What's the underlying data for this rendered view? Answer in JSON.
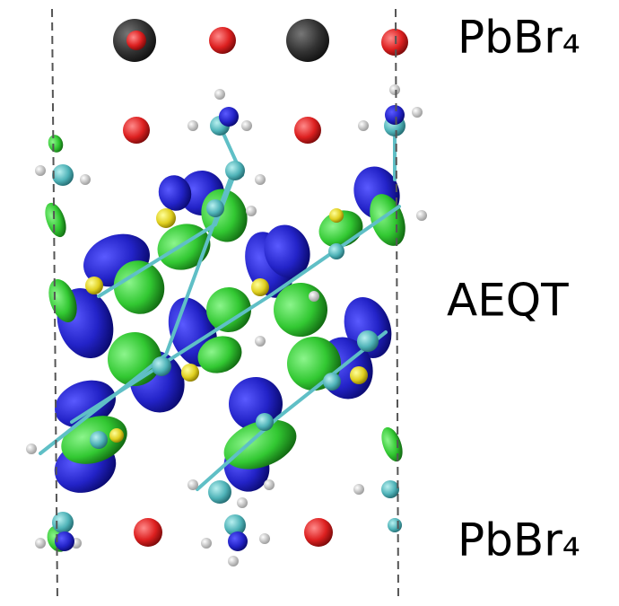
{
  "labels": {
    "top": "PbBr₄",
    "middle": "AEQT",
    "bottom": "PbBr₄"
  }
}
